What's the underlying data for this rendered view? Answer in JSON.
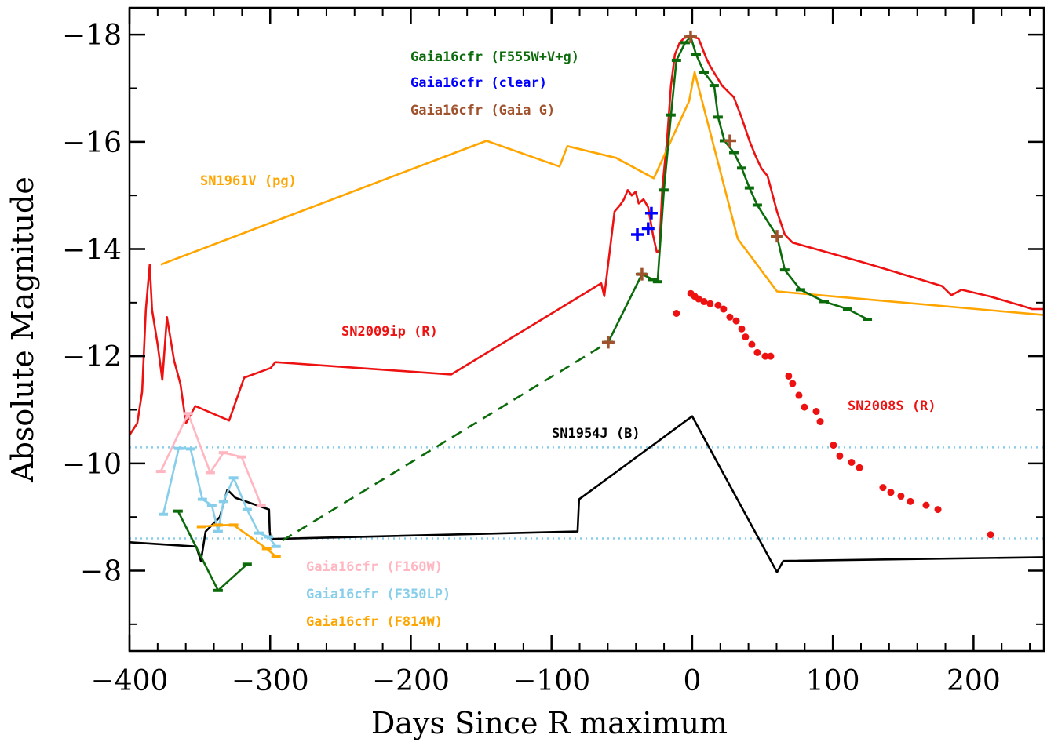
{
  "chart_data": {
    "type": "line",
    "xlabel": "Days Since R maximum",
    "ylabel": "Absolute Magnitude",
    "xlim": [
      -400,
      250
    ],
    "ylim": [
      -6.5,
      -18.5
    ],
    "xticks": [
      {
        "value": -400,
        "label": "−400"
      },
      {
        "value": -300,
        "label": "−300"
      },
      {
        "value": -200,
        "label": "−200"
      },
      {
        "value": -100,
        "label": "−100"
      },
      0,
      100,
      200
    ],
    "xminorticks": [
      -380,
      -360,
      -340,
      -320,
      -280,
      -260,
      -240,
      -220,
      -180,
      -160,
      -140,
      -120,
      -80,
      -60,
      -40,
      -20,
      20,
      40,
      60,
      80,
      120,
      140,
      160,
      180,
      220,
      240
    ],
    "yticks": [
      {
        "value": -18,
        "label": "−18"
      },
      {
        "value": -16,
        "label": "−16"
      },
      {
        "value": -14,
        "label": "−14"
      },
      {
        "value": -12,
        "label": "−12"
      },
      {
        "value": -10,
        "label": "−10"
      },
      {
        "value": -8,
        "label": "−8"
      }
    ],
    "yminorticks": [
      -17,
      -15,
      -13,
      -11,
      -9,
      -7
    ],
    "hlines": {
      "color": "#87ceeb",
      "values": [
        -10.3,
        -8.6
      ]
    },
    "series": [
      {
        "name": "SN2009ip (R)",
        "color": "#ee1111",
        "style": "line",
        "x": [
          -400,
          -394.5,
          -391,
          -388.4,
          -385.6,
          -384,
          -380,
          -376.7,
          -373.4,
          -368.3,
          -363.8,
          -359.9,
          -353.2,
          -329.2,
          -318.5,
          -299.7,
          -296.3,
          -171.3,
          -64.7,
          -62.5,
          -55.2,
          -51.3,
          -48.5,
          -45.8,
          -43,
          -40.2,
          -38,
          -34.6,
          -31.3,
          -27.9,
          -25.1,
          -23.4,
          -21.2,
          -17.9,
          -15.1,
          -12.3,
          -8.9,
          -5.6,
          -1.1,
          4.5,
          10,
          12.8,
          21.2,
          29.6,
          35,
          40.7,
          45.2,
          49.1,
          53.6,
          60.3,
          65.8,
          71.4,
          121.7,
          177.5,
          184.2,
          191.5,
          211,
          233.3,
          241.7,
          249.9
        ],
        "values": [
          -10.53,
          -10.75,
          -11.34,
          -12.87,
          -13.71,
          -12.87,
          -12.22,
          -11.56,
          -12.73,
          -11.92,
          -11.48,
          -10.75,
          -11.07,
          -10.8,
          -11.6,
          -11.78,
          -11.89,
          -11.66,
          -13.36,
          -13.12,
          -14.7,
          -14.82,
          -14.93,
          -15.1,
          -15.0,
          -15.07,
          -14.85,
          -14.93,
          -14.78,
          -14.27,
          -13.94,
          -13.97,
          -15.14,
          -16.02,
          -17.05,
          -17.63,
          -17.85,
          -17.94,
          -17.96,
          -17.93,
          -17.56,
          -17.41,
          -17.05,
          -16.83,
          -16.46,
          -16.02,
          -15.73,
          -15.51,
          -15.36,
          -14.7,
          -14.27,
          -14.12,
          -13.75,
          -13.31,
          -13.14,
          -13.24,
          -13.12,
          -12.95,
          -12.88,
          -12.88
        ]
      },
      {
        "name": "SN1961V (pg)",
        "color": "#ffa500",
        "style": "line",
        "x": [
          -377.8,
          -146.2,
          -94.3,
          -88.7,
          -54.1,
          -27.3,
          -2.2,
          1.7,
          32.4,
          60.3,
          250
        ],
        "values": [
          -13.71,
          -16.02,
          -15.54,
          -15.92,
          -15.7,
          -15.32,
          -16.76,
          -17.3,
          -14.19,
          -13.21,
          -12.77
        ]
      },
      {
        "name": "SN1954J (B)",
        "color": "#000000",
        "style": "line",
        "x": [
          -400,
          -352.6,
          -349.2,
          -345.9,
          -335.8,
          -330.4,
          -324.8,
          -300.8,
          -300.3,
          -299.7,
          -81.5,
          -80.4,
          0,
          60.3,
          64.7,
          250
        ],
        "values": [
          -8.53,
          -8.45,
          -8.18,
          -8.73,
          -9.0,
          -9.51,
          -9.36,
          -9.14,
          -8.73,
          -8.59,
          -8.73,
          -9.33,
          -10.88,
          -7.97,
          -8.18,
          -8.25
        ]
      },
      {
        "name": "Gaia16cfr (F555W+V+g)",
        "color": "#0b6b0b",
        "style": "line-ticks",
        "x": [
          -365.5,
          -337,
          -316.4,
          null,
          -59.7,
          -35.7,
          -27.9,
          -24.6,
          -20.1,
          -15.1,
          -11.2,
          -5,
          -1.1,
          2.8,
          8.4,
          15.6,
          18.4,
          22.9,
          29.6,
          35.2,
          40.7,
          46.3,
          60.3,
          65.8,
          77,
          93.8,
          110.5,
          124.5
        ],
        "values": [
          -9.11,
          -7.63,
          -8.12,
          null,
          -12.26,
          -13.53,
          -13.43,
          -13.39,
          -15.1,
          -16.5,
          -17.52,
          -17.85,
          -17.96,
          -17.63,
          -17.3,
          -17.05,
          -16.46,
          -16.02,
          -15.8,
          -15.51,
          -15.14,
          -14.82,
          -14.24,
          -13.61,
          -13.24,
          -13.02,
          -12.88,
          -12.69
        ]
      },
      {
        "color": "#0b6b0b",
        "style": "dashed",
        "x": [
          -291.3,
          -59.7
        ],
        "values": [
          -8.56,
          -12.26
        ]
      },
      {
        "name": "Gaia16cfr (clear)",
        "color": "#0000ff",
        "style": "plus",
        "x": [
          -39,
          -31.3,
          -29
        ],
        "values": [
          -14.27,
          -14.38,
          -14.67
        ]
      },
      {
        "name": "Gaia16cfr (Gaia G)",
        "color": "#a0522d",
        "style": "plus",
        "x": [
          -59.7,
          -35.7,
          -1.1,
          26.8,
          60.3
        ],
        "values": [
          -12.26,
          -13.53,
          -17.96,
          -16.02,
          -14.24
        ]
      },
      {
        "name": "SN2008S (R)",
        "color": "#ee1111",
        "style": "dots",
        "x": [
          -11.2,
          -1,
          1.7,
          4.5,
          8.4,
          12.8,
          18.4,
          22.3,
          26.8,
          31.3,
          35.2,
          37.9,
          42.4,
          46.3,
          51.9,
          55.8,
          68.6,
          71.4,
          75.9,
          79.8,
          88.2,
          91,
          100.4,
          104.9,
          113.3,
          118.9,
          135.6,
          141.2,
          148.4,
          155.1,
          166.3,
          174.7,
          212.1
        ],
        "values": [
          -12.8,
          -13.17,
          -13.12,
          -13.07,
          -13.02,
          -12.98,
          -12.95,
          -12.88,
          -12.73,
          -12.66,
          -12.51,
          -12.36,
          -12.22,
          -12.07,
          -12.0,
          -12.0,
          -11.63,
          -11.49,
          -11.27,
          -11.05,
          -10.97,
          -10.78,
          -10.34,
          -10.14,
          -10.02,
          -9.92,
          -9.55,
          -9.46,
          -9.39,
          -9.29,
          -9.22,
          -9.14,
          -8.67
        ]
      },
      {
        "name": "Gaia16cfr (F160W)",
        "color": "#ffb6c1",
        "style": "line-ticks",
        "x": [
          -377.8,
          -358.3,
          -342.6,
          -333.2,
          -320.3,
          -306.4
        ],
        "values": [
          -9.85,
          -10.93,
          -9.83,
          -10.2,
          -10.12,
          -9.22
        ]
      },
      {
        "name": "Gaia16cfr (F350LP)",
        "color": "#87ceeb",
        "style": "line-ticks",
        "x": [
          -376,
          -365,
          -356.6,
          -348.2,
          -341.5,
          -337,
          -333.2,
          -326,
          -316.4,
          -308,
          -301.3,
          -295.8
        ],
        "values": [
          -9.05,
          -10.28,
          -10.27,
          -9.33,
          -9.22,
          -8.73,
          -9.29,
          -9.73,
          -9.14,
          -8.7,
          -8.63,
          -8.45
        ]
      },
      {
        "name": "Gaia16cfr (F814W)",
        "color": "#ffa500",
        "style": "line-ticks",
        "x": [
          -348.8,
          -337,
          -326,
          -302.5,
          -295.8
        ],
        "values": [
          -8.82,
          -8.85,
          -8.85,
          -8.41,
          -8.26
        ]
      }
    ]
  }
}
